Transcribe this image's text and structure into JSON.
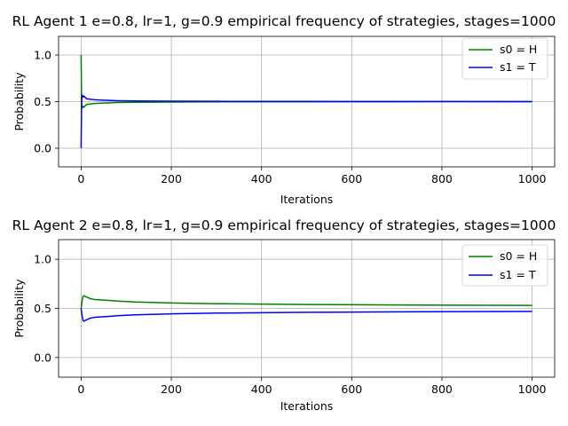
{
  "chart_data": [
    {
      "type": "line",
      "title": "RL Agent 1 e=0.8, lr=1, g=0.9 empirical frequency of strategies, stages=1000",
      "xlabel": "Iterations",
      "ylabel": "Probability",
      "xlim": [
        -50,
        1050
      ],
      "ylim": [
        -0.2,
        1.2
      ],
      "xticks": [
        0,
        200,
        400,
        600,
        800,
        1000
      ],
      "yticks": [
        0.0,
        0.5,
        1.0
      ],
      "grid": true,
      "legend_position": "upper right",
      "series": [
        {
          "name": "s0 = H",
          "color": "#008000",
          "x": [
            0,
            1,
            2,
            3,
            4,
            5,
            6,
            8,
            10,
            12,
            15,
            20,
            30,
            50,
            80,
            120,
            200,
            300,
            500,
            700,
            1000
          ],
          "y": [
            1.0,
            0.5,
            0.43,
            0.45,
            0.44,
            0.45,
            0.44,
            0.45,
            0.46,
            0.47,
            0.47,
            0.475,
            0.48,
            0.485,
            0.49,
            0.493,
            0.495,
            0.497,
            0.498,
            0.499,
            0.5
          ]
        },
        {
          "name": "s1 = T",
          "color": "#0000ff",
          "x": [
            0,
            1,
            2,
            3,
            4,
            5,
            6,
            8,
            10,
            12,
            15,
            20,
            30,
            50,
            80,
            120,
            200,
            300,
            500,
            700,
            1000
          ],
          "y": [
            0.0,
            0.5,
            0.57,
            0.55,
            0.56,
            0.55,
            0.56,
            0.55,
            0.54,
            0.53,
            0.53,
            0.525,
            0.52,
            0.515,
            0.51,
            0.507,
            0.505,
            0.503,
            0.502,
            0.501,
            0.5
          ]
        }
      ]
    },
    {
      "type": "line",
      "title": "RL Agent 2 e=0.8, lr=1, g=0.9 empirical frequency of strategies, stages=1000",
      "xlabel": "Iterations",
      "ylabel": "Probability",
      "xlim": [
        -50,
        1050
      ],
      "ylim": [
        -0.2,
        1.2
      ],
      "xticks": [
        0,
        200,
        400,
        600,
        800,
        1000
      ],
      "yticks": [
        0.0,
        0.5,
        1.0
      ],
      "grid": true,
      "legend_position": "upper right",
      "series": [
        {
          "name": "s0 = H",
          "color": "#008000",
          "x": [
            0,
            2,
            4,
            6,
            8,
            10,
            15,
            20,
            30,
            50,
            80,
            120,
            200,
            300,
            500,
            700,
            1000
          ],
          "y": [
            0.5,
            0.57,
            0.62,
            0.63,
            0.625,
            0.62,
            0.61,
            0.6,
            0.59,
            0.585,
            0.575,
            0.565,
            0.555,
            0.548,
            0.54,
            0.535,
            0.53
          ]
        },
        {
          "name": "s1 = T",
          "color": "#0000ff",
          "x": [
            0,
            2,
            4,
            6,
            8,
            10,
            15,
            20,
            30,
            50,
            80,
            120,
            200,
            300,
            500,
            700,
            1000
          ],
          "y": [
            0.5,
            0.43,
            0.38,
            0.37,
            0.375,
            0.38,
            0.39,
            0.4,
            0.41,
            0.415,
            0.425,
            0.435,
            0.445,
            0.452,
            0.46,
            0.465,
            0.47
          ]
        }
      ]
    }
  ]
}
